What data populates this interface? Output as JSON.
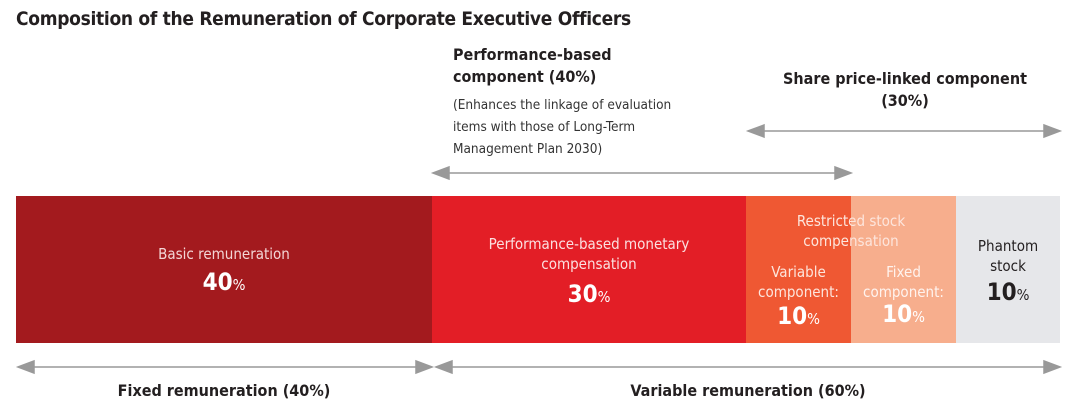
{
  "title": "Composition of the Remuneration of Corporate Executive Officers",
  "performance_header": {
    "line1": "Performance-based",
    "line2": "component (40%)",
    "note1": "(Enhances the linkage of evaluation",
    "note2": "items with those of Long-Term",
    "note3": "Management Plan 2030)"
  },
  "share_header": {
    "line1": "Share price-linked component",
    "line2": "(30%)"
  },
  "segments": [
    {
      "label": "Basic remuneration",
      "value": "40",
      "unit": "%",
      "color": "#a31a1e"
    },
    {
      "label1": "Performance-based monetary",
      "label2": "compensation",
      "value": "30",
      "unit": "%",
      "color": "#e31e26"
    },
    {
      "label1": "Variable",
      "label2": "component:",
      "value": "10",
      "unit": "%",
      "color": "#ef5833"
    },
    {
      "label1": "Fixed",
      "label2": "component:",
      "value": "10",
      "unit": "%",
      "color": "#f7ae8d"
    },
    {
      "label1": "Phantom",
      "label2": "stock",
      "value": "10",
      "unit": "%",
      "color": "#e6e7ea"
    }
  ],
  "restricted_label1": "Restricted stock",
  "restricted_label2": "compensation",
  "bottom": {
    "fixed": "Fixed remuneration (40%)",
    "variable": "Variable remuneration (60%)"
  },
  "arrow_color": "#999999"
}
